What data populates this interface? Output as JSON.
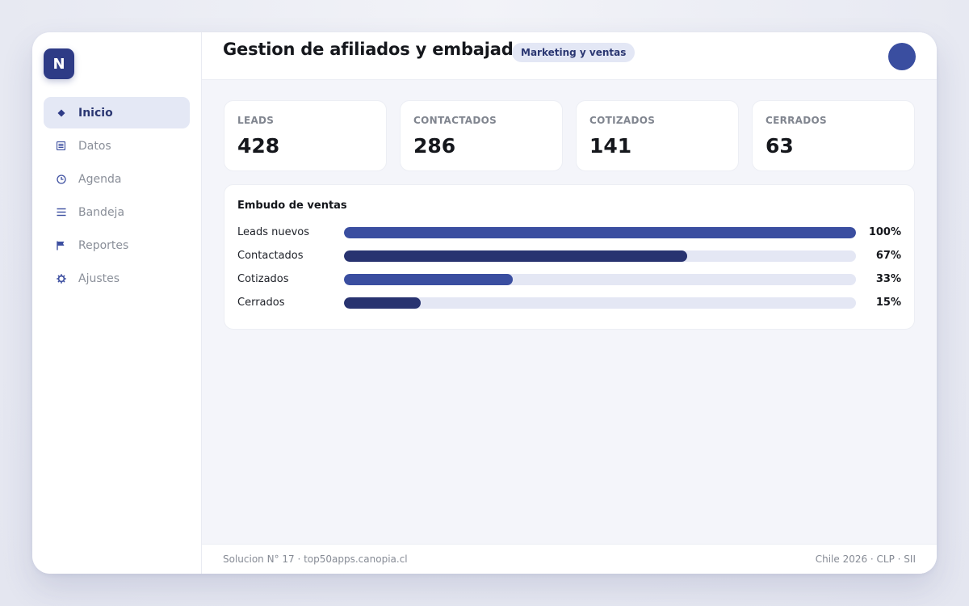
{
  "app": {
    "logo_letter": "N"
  },
  "sidebar": {
    "items": [
      {
        "label": "Inicio",
        "icon": "diamond-icon",
        "active": true
      },
      {
        "label": "Datos",
        "icon": "document-list-icon",
        "active": false
      },
      {
        "label": "Agenda",
        "icon": "clock-icon",
        "active": false
      },
      {
        "label": "Bandeja",
        "icon": "menu-lines-icon",
        "active": false
      },
      {
        "label": "Reportes",
        "icon": "flag-icon",
        "active": false
      },
      {
        "label": "Ajustes",
        "icon": "gear-icon",
        "active": false
      }
    ]
  },
  "header": {
    "title": "Gestion de afiliados y embajadores",
    "badge": "Marketing y ventas"
  },
  "kpis": [
    {
      "label": "LEADS",
      "value": "428"
    },
    {
      "label": "CONTACTADOS",
      "value": "286"
    },
    {
      "label": "COTIZADOS",
      "value": "141"
    },
    {
      "label": "CERRADOS",
      "value": "63"
    }
  ],
  "funnel": {
    "title": "Embudo de ventas",
    "rows": [
      {
        "label": "Leads nuevos",
        "pct": "100%",
        "value": 100,
        "color": "#3a4ea0"
      },
      {
        "label": "Contactados",
        "pct": "67%",
        "value": 67,
        "color": "#283370"
      },
      {
        "label": "Cotizados",
        "pct": "33%",
        "value": 33,
        "color": "#3a4ea0"
      },
      {
        "label": "Cerrados",
        "pct": "15%",
        "value": 15,
        "color": "#283370"
      }
    ]
  },
  "footer": {
    "left": "Solucion N° 17 · top50apps.canopia.cl",
    "right": "Chile 2026 · CLP · SII"
  },
  "colors": {
    "accent": "#3a4ea0",
    "accent_dark": "#283370",
    "active_bg": "#e4e8f5"
  }
}
